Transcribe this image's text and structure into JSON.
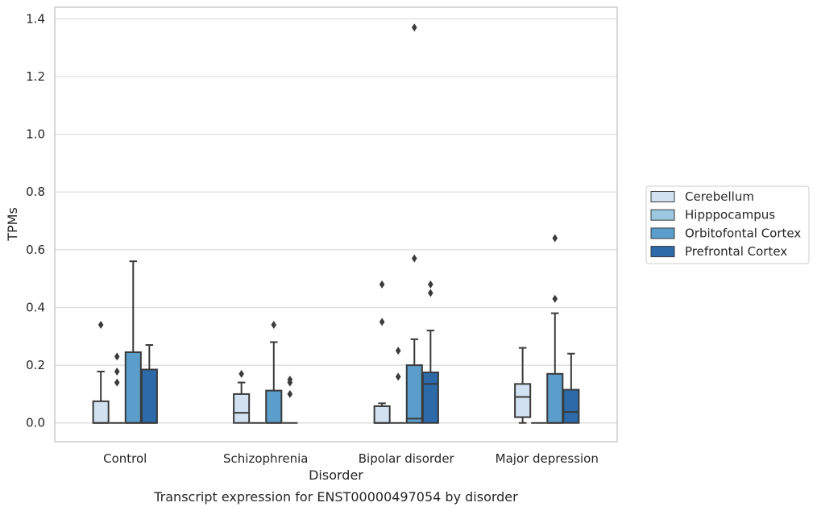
{
  "chart_data": {
    "type": "box",
    "xlabel": "Disorder",
    "ylabel": "TPMs",
    "caption": "Transcript expression for ENST00000497054 by disorder",
    "ylim": [
      -0.065,
      1.44
    ],
    "yticks": [
      0.0,
      0.2,
      0.4,
      0.6,
      0.8,
      1.0,
      1.2,
      1.4
    ],
    "ytick_labels": [
      "0.0",
      "0.2",
      "0.4",
      "0.6",
      "0.8",
      "1.0",
      "1.2",
      "1.4"
    ],
    "grid": "horizontal",
    "legend_position": "right",
    "categories": [
      "Control",
      "Schizophrenia",
      "Bipolar disorder",
      "Major depression"
    ],
    "series": [
      {
        "name": "Cerebellum",
        "color": "#d2e1f1",
        "boxes": [
          {
            "q1": 0.0,
            "median": 0.0,
            "q3": 0.075,
            "whislo": 0.0,
            "whishi": 0.178,
            "fliers": [
              0.34
            ]
          },
          {
            "q1": 0.0,
            "median": 0.035,
            "q3": 0.1,
            "whislo": 0.0,
            "whishi": 0.14,
            "fliers": [
              0.17
            ]
          },
          {
            "q1": 0.0,
            "median": 0.0,
            "q3": 0.058,
            "whislo": 0.0,
            "whishi": 0.068,
            "fliers": [
              0.35,
              0.48
            ]
          },
          {
            "q1": 0.02,
            "median": 0.09,
            "q3": 0.135,
            "whislo": 0.0,
            "whishi": 0.26,
            "fliers": []
          }
        ]
      },
      {
        "name": "Hipppocampus",
        "color": "#9ac8e0",
        "boxes": [
          {
            "q1": 0.0,
            "median": 0.0,
            "q3": 0.0,
            "whislo": 0.0,
            "whishi": 0.0,
            "fliers": [
              0.14,
              0.178,
              0.23
            ]
          },
          {
            "q1": 0.0,
            "median": 0.0,
            "q3": 0.0,
            "whislo": 0.0,
            "whishi": 0.0,
            "fliers": []
          },
          {
            "q1": 0.0,
            "median": 0.0,
            "q3": 0.0,
            "whislo": 0.0,
            "whishi": 0.0,
            "fliers": [
              0.16,
              0.25
            ]
          },
          {
            "q1": 0.0,
            "median": 0.0,
            "q3": 0.0,
            "whislo": 0.0,
            "whishi": 0.0,
            "fliers": []
          }
        ]
      },
      {
        "name": "Orbitofontal Cortex",
        "color": "#5b9ecb",
        "boxes": [
          {
            "q1": 0.0,
            "median": 0.0,
            "q3": 0.245,
            "whislo": 0.0,
            "whishi": 0.56,
            "fliers": []
          },
          {
            "q1": 0.0,
            "median": 0.0,
            "q3": 0.112,
            "whislo": 0.0,
            "whishi": 0.28,
            "fliers": [
              0.34
            ]
          },
          {
            "q1": 0.0,
            "median": 0.015,
            "q3": 0.2,
            "whislo": 0.0,
            "whishi": 0.29,
            "fliers": [
              0.57,
              1.37
            ]
          },
          {
            "q1": 0.0,
            "median": 0.0,
            "q3": 0.17,
            "whislo": 0.0,
            "whishi": 0.38,
            "fliers": [
              0.43,
              0.64
            ]
          }
        ]
      },
      {
        "name": "Prefrontal Cortex",
        "color": "#2c6aa9",
        "boxes": [
          {
            "q1": 0.0,
            "median": 0.0,
            "q3": 0.185,
            "whislo": 0.0,
            "whishi": 0.27,
            "fliers": []
          },
          {
            "q1": 0.0,
            "median": 0.0,
            "q3": 0.0,
            "whislo": 0.0,
            "whishi": 0.0,
            "fliers": [
              0.1,
              0.14,
              0.15
            ]
          },
          {
            "q1": 0.0,
            "median": 0.135,
            "q3": 0.175,
            "whislo": 0.0,
            "whishi": 0.32,
            "fliers": [
              0.45,
              0.48
            ]
          },
          {
            "q1": 0.0,
            "median": 0.038,
            "q3": 0.115,
            "whislo": 0.0,
            "whishi": 0.24,
            "fliers": []
          }
        ]
      }
    ]
  }
}
